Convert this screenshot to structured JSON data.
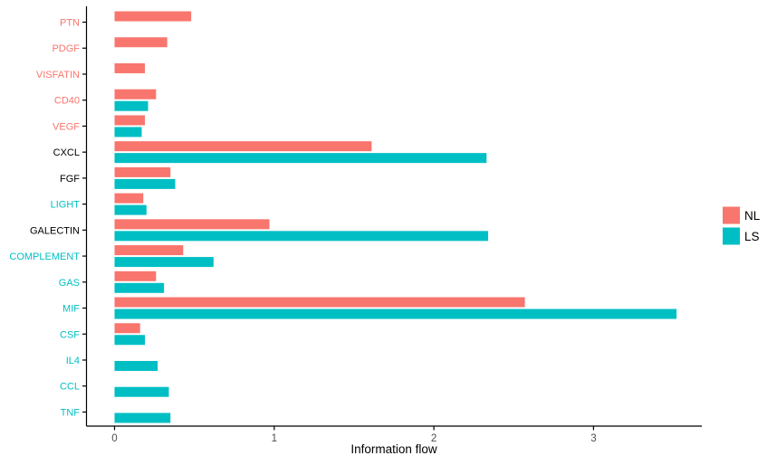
{
  "chart_data": {
    "type": "bar",
    "orientation": "horizontal",
    "title": "",
    "xlabel": "Information flow",
    "ylabel": "",
    "xticks": [
      0,
      1,
      2,
      3
    ],
    "xlim": [
      -0.18,
      3.68
    ],
    "grid": false,
    "legend_position": "right",
    "axis_color": "#000000",
    "tick_label_color": "#4d4d4d",
    "categories": [
      "PTN",
      "PDGF",
      "VISFATIN",
      "CD40",
      "VEGF",
      "CXCL",
      "FGF",
      "LIGHT",
      "GALECTIN",
      "COMPLEMENT",
      "GAS",
      "MIF",
      "CSF",
      "IL4",
      "CCL",
      "TNF"
    ],
    "category_label_colors": [
      "#F8766D",
      "#F8766D",
      "#F8766D",
      "#F8766D",
      "#F8766D",
      "#000000",
      "#000000",
      "#00BFC4",
      "#000000",
      "#00BFC4",
      "#00BFC4",
      "#00BFC4",
      "#00BFC4",
      "#00BFC4",
      "#00BFC4",
      "#00BFC4"
    ],
    "series": [
      {
        "name": "NL",
        "color": "#F8766D",
        "values": [
          0.48,
          0.33,
          0.19,
          0.26,
          0.19,
          1.61,
          0.35,
          0.18,
          0.97,
          0.43,
          0.26,
          2.57,
          0.16,
          null,
          null,
          null
        ]
      },
      {
        "name": "LS",
        "color": "#00BFC4",
        "values": [
          null,
          null,
          null,
          0.21,
          0.17,
          2.33,
          0.38,
          0.2,
          2.34,
          0.62,
          0.31,
          3.52,
          0.19,
          0.27,
          0.34,
          0.35
        ]
      }
    ]
  }
}
